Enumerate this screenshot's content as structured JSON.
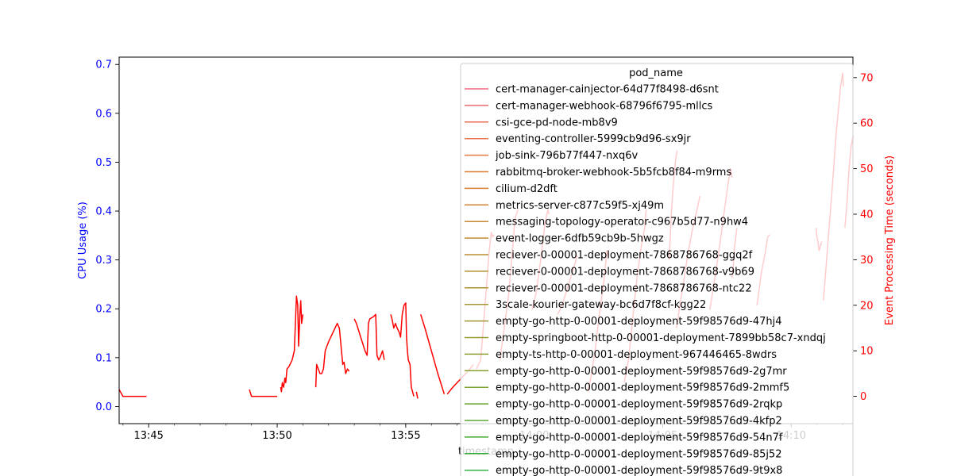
{
  "chart_data": {
    "type": "line",
    "xlabel": "timestamp",
    "x_range": [
      "13:43:51",
      "14:12:24"
    ],
    "x_ticks": [
      "13:45",
      "13:50",
      "13:55",
      "14:00",
      "14:05",
      "14:10"
    ],
    "y_left": {
      "label": "CPU Usage (%)",
      "color": "#0000ff",
      "range": [
        -0.035,
        0.715
      ],
      "ticks": [
        "0.0",
        "0.1",
        "0.2",
        "0.3",
        "0.4",
        "0.5",
        "0.6",
        "0.7"
      ]
    },
    "y_right": {
      "label": "Event Processing Time (seconds)",
      "color": "#ff0000",
      "range": [
        -6,
        74.5
      ],
      "ticks": [
        "0",
        "10",
        "20",
        "30",
        "40",
        "50",
        "60",
        "70"
      ]
    },
    "legend": {
      "title": "pod_name",
      "placement": "top-right",
      "entries": [
        {
          "name": "cert-manager-cainjector-64d77f8498-d6snt",
          "color": "#f0667f"
        },
        {
          "name": "cert-manager-webhook-68796f6795-mllcs",
          "color": "#ef6a6e"
        },
        {
          "name": "csi-gce-pd-node-mb8v9",
          "color": "#ee6d5e"
        },
        {
          "name": "eventing-controller-5999cb9d96-sx9jr",
          "color": "#ea714e"
        },
        {
          "name": "job-sink-796b77f447-nxq6v",
          "color": "#e5763c"
        },
        {
          "name": "rabbitmq-broker-webhook-5b5fcb8f84-m9rms",
          "color": "#dd7b30"
        },
        {
          "name": "cilium-d2dft",
          "color": "#d6802d"
        },
        {
          "name": "metrics-server-c877c59f5-xj49m",
          "color": "#cf842f"
        },
        {
          "name": "messaging-topology-operator-c967b5d77-n9hw4",
          "color": "#c88731"
        },
        {
          "name": "event-logger-6dfb59cb9b-5hwgz",
          "color": "#c18a31"
        },
        {
          "name": "reciever-0-00001-deployment-7868786768-ggq2f",
          "color": "#bb8d31"
        },
        {
          "name": "reciever-0-00001-deployment-7868786768-v9b69",
          "color": "#b49031"
        },
        {
          "name": "reciever-0-00001-deployment-7868786768-ntc22",
          "color": "#ad9331"
        },
        {
          "name": "3scale-kourier-gateway-bc6d7f8cf-kgg22",
          "color": "#a69531"
        },
        {
          "name": "empty-go-http-0-00001-deployment-59f98576d9-47hj4",
          "color": "#9f9831"
        },
        {
          "name": "empty-springboot-http-0-00001-deployment-7899bb58c7-xndqj",
          "color": "#979a31"
        },
        {
          "name": "empty-ts-http-0-00001-deployment-967446465-8wdrs",
          "color": "#8e9d31"
        },
        {
          "name": "empty-go-http-0-00001-deployment-59f98576d9-2g7mr",
          "color": "#84a031"
        },
        {
          "name": "empty-go-http-0-00001-deployment-59f98576d9-2mmf5",
          "color": "#79a331"
        },
        {
          "name": "empty-go-http-0-00001-deployment-59f98576d9-2rqkp",
          "color": "#6ca531"
        },
        {
          "name": "empty-go-http-0-00001-deployment-59f98576d9-4kfp2",
          "color": "#5ba831"
        },
        {
          "name": "empty-go-http-0-00001-deployment-59f98576d9-54n7f",
          "color": "#43ab31"
        },
        {
          "name": "empty-go-http-0-00001-deployment-59f98576d9-85j52",
          "color": "#31ae3a"
        },
        {
          "name": "empty-go-http-0-00001-deployment-59f98576d9-9t9x8",
          "color": "#31b048"
        }
      ]
    },
    "series": [
      {
        "axis": "right",
        "color": "#ff0000",
        "segments": [
          [
            [
              "13:43:51",
              1.5
            ],
            [
              "13:44:00",
              0
            ],
            [
              "13:44:30",
              0
            ],
            [
              "13:44:55",
              0
            ]
          ],
          [
            [
              "13:48:55",
              1.5
            ],
            [
              "13:49:00",
              0
            ],
            [
              "13:50:00",
              0
            ]
          ],
          [
            [
              "13:50:08",
              2
            ],
            [
              "13:50:10",
              1
            ],
            [
              "13:50:12",
              3
            ],
            [
              "13:50:15",
              2
            ],
            [
              "13:50:18",
              4
            ],
            [
              "13:50:20",
              3
            ],
            [
              "13:50:23",
              6
            ],
            [
              "13:50:27",
              6.5
            ],
            [
              "13:50:30",
              7
            ],
            [
              "13:50:35",
              8
            ],
            [
              "13:50:40",
              10
            ],
            [
              "13:50:43",
              17
            ],
            [
              "13:50:45",
              22
            ],
            [
              "13:50:48",
              20
            ],
            [
              "13:50:50",
              11
            ],
            [
              "13:50:53",
              18
            ],
            [
              "13:50:55",
              21
            ],
            [
              "13:50:57",
              16
            ],
            [
              "13:51:00",
              18
            ]
          ],
          [
            [
              "13:51:30",
              2
            ],
            [
              "13:51:32",
              7
            ],
            [
              "13:51:36",
              6
            ],
            [
              "13:51:40",
              5
            ],
            [
              "13:51:44",
              5
            ],
            [
              "13:51:48",
              6
            ],
            [
              "13:51:52",
              10
            ],
            [
              "13:51:56",
              11
            ],
            [
              "13:52:00",
              12
            ],
            [
              "13:52:10",
              14
            ],
            [
              "13:52:20",
              16
            ],
            [
              "13:52:25",
              15
            ],
            [
              "13:52:30",
              10
            ],
            [
              "13:52:33",
              7
            ],
            [
              "13:52:36",
              7.5
            ],
            [
              "13:52:40",
              5
            ],
            [
              "13:52:44",
              6
            ],
            [
              "13:52:48",
              5.5
            ]
          ],
          [
            [
              "13:53:00",
              17
            ],
            [
              "13:53:05",
              16
            ],
            [
              "13:53:15",
              13
            ],
            [
              "13:53:25",
              10
            ],
            [
              "13:53:30",
              9
            ],
            [
              "13:53:33",
              16
            ],
            [
              "13:53:36",
              17
            ],
            [
              "13:53:45",
              17.5
            ],
            [
              "13:53:50",
              18
            ],
            [
              "13:53:53",
              9
            ],
            [
              "13:53:57",
              8
            ],
            [
              "13:54:00",
              8.5
            ],
            [
              "13:54:02",
              9
            ],
            [
              "13:54:06",
              10
            ],
            [
              "13:54:10",
              8
            ]
          ],
          [
            [
              "13:54:25",
              18
            ],
            [
              "13:54:28",
              17
            ],
            [
              "13:54:32",
              15
            ],
            [
              "13:54:36",
              16
            ],
            [
              "13:54:40",
              15
            ],
            [
              "13:54:45",
              14
            ],
            [
              "13:54:48",
              13
            ],
            [
              "13:54:52",
              18
            ],
            [
              "13:54:56",
              20
            ],
            [
              "13:55:00",
              20.5
            ],
            [
              "13:55:02",
              13
            ],
            [
              "13:55:04",
              10
            ],
            [
              "13:55:06",
              8
            ],
            [
              "13:55:10",
              7
            ],
            [
              "13:55:13",
              2
            ],
            [
              "13:55:16",
              1
            ],
            [
              "13:55:19",
              0
            ]
          ],
          [
            [
              "13:55:25",
              1
            ],
            [
              "13:55:28",
              -0.5
            ]
          ],
          [
            [
              "13:55:35",
              18
            ],
            [
              "13:55:45",
              15
            ],
            [
              "13:56:00",
              10
            ],
            [
              "13:56:15",
              5
            ],
            [
              "13:56:25",
              2
            ],
            [
              "13:56:30",
              0.5
            ]
          ],
          [
            [
              "13:56:37",
              0.5
            ],
            [
              "13:56:50",
              2
            ],
            [
              "13:57:10",
              4
            ],
            [
              "13:57:30",
              6
            ],
            [
              "13:57:38",
              7
            ]
          ],
          [
            [
              "13:57:45",
              6
            ],
            [
              "13:57:50",
              7
            ],
            [
              "13:57:55",
              8
            ],
            [
              "13:58:05",
              20
            ],
            [
              "13:58:15",
              32
            ],
            [
              "13:58:20",
              36
            ],
            [
              "13:58:23",
              35
            ],
            [
              "13:58:27",
              35.5
            ]
          ],
          [
            [
              "13:58:40",
              8
            ],
            [
              "13:58:50",
              15
            ],
            [
              "13:59:00",
              22
            ],
            [
              "13:59:10",
              33
            ],
            [
              "13:59:15",
              39
            ],
            [
              "13:59:22",
              41
            ]
          ],
          [
            [
              "13:59:55",
              19
            ],
            [
              "14:00:05",
              23
            ],
            [
              "14:00:15",
              30
            ],
            [
              "14:00:25",
              38
            ],
            [
              "14:00:32",
              41
            ],
            [
              "14:00:35",
              40
            ]
          ],
          [
            [
              "14:00:55",
              18
            ],
            [
              "14:01:05",
              20
            ],
            [
              "14:01:15",
              23
            ],
            [
              "14:01:25",
              26
            ],
            [
              "14:01:35",
              29
            ],
            [
              "14:01:40",
              31
            ]
          ],
          [
            [
              "14:02:05",
              1
            ],
            [
              "14:02:12",
              4
            ],
            [
              "14:02:22",
              10
            ],
            [
              "14:02:32",
              18
            ],
            [
              "14:02:42",
              25
            ],
            [
              "14:02:50",
              32
            ],
            [
              "14:02:52",
              31
            ]
          ],
          [
            [
              "14:03:30",
              3
            ],
            [
              "14:03:40",
              8
            ],
            [
              "14:03:50",
              17
            ],
            [
              "14:04:00",
              26
            ],
            [
              "14:04:10",
              33
            ],
            [
              "14:04:18",
              37
            ],
            [
              "14:04:20",
              40
            ],
            [
              "14:04:22",
              41
            ]
          ],
          [
            [
              "14:05:15",
              30
            ],
            [
              "14:05:20",
              40
            ],
            [
              "14:05:25",
              47
            ],
            [
              "14:05:30",
              52
            ],
            [
              "14:05:34",
              54
            ]
          ],
          [
            [
              "14:05:32",
              15
            ],
            [
              "14:05:40",
              20
            ],
            [
              "14:05:50",
              26
            ],
            [
              "14:06:00",
              32
            ],
            [
              "14:06:10",
              37
            ],
            [
              "14:06:20",
              41
            ],
            [
              "14:06:27",
              44
            ]
          ],
          [
            [
              "14:06:50",
              19
            ],
            [
              "14:07:00",
              25
            ],
            [
              "14:07:10",
              31
            ],
            [
              "14:07:20",
              38
            ],
            [
              "14:07:30",
              45
            ],
            [
              "14:07:38",
              50
            ],
            [
              "14:07:42",
              48
            ]
          ],
          [
            [
              "14:07:42",
              26
            ],
            [
              "14:07:45",
              29
            ],
            [
              "14:07:48",
              33
            ],
            [
              "14:07:53",
              37
            ]
          ],
          [
            [
              "14:08:40",
              20
            ],
            [
              "14:08:50",
              27
            ],
            [
              "14:09:00",
              32
            ],
            [
              "14:09:05",
              35
            ],
            [
              "14:09:10",
              35.5
            ]
          ],
          [
            [
              "14:10:58",
              37
            ],
            [
              "14:11:00",
              35
            ],
            [
              "14:11:02",
              34
            ],
            [
              "14:11:05",
              32
            ],
            [
              "14:11:08",
              33
            ],
            [
              "14:11:11",
              34
            ]
          ],
          [
            [
              "14:11:15",
              21
            ],
            [
              "14:11:25",
              33
            ],
            [
              "14:11:35",
              45
            ],
            [
              "14:11:45",
              58
            ],
            [
              "14:11:55",
              68
            ],
            [
              "14:12:00",
              71
            ],
            [
              "14:12:02",
              68
            ]
          ],
          [
            [
              "14:12:05",
              37
            ],
            [
              "14:12:10",
              42
            ],
            [
              "14:12:15",
              50
            ],
            [
              "14:12:20",
              55
            ],
            [
              "14:12:24",
              57
            ]
          ]
        ]
      }
    ]
  }
}
